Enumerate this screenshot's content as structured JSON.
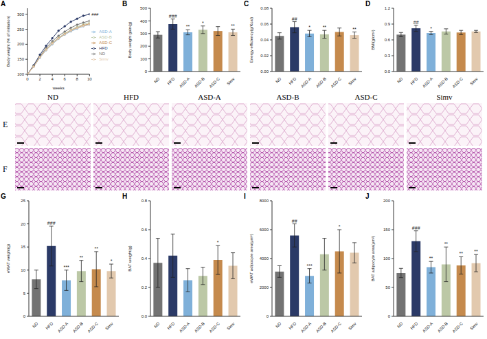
{
  "chart_data": [
    {
      "panel": "A",
      "type": "line",
      "x_label": "weeks",
      "y_label": "Body weight (% of initiation)",
      "x": [
        0,
        1,
        2,
        3,
        4,
        5,
        6,
        7,
        8,
        9,
        10
      ],
      "xlim": [
        0,
        10
      ],
      "xticks": [
        0,
        2,
        4,
        6,
        8,
        10
      ],
      "ylim": [
        100,
        320
      ],
      "yticks": [
        100,
        150,
        200,
        250,
        300
      ],
      "legend": "right",
      "marker": "circle",
      "series": [
        {
          "name": "ND",
          "color": "#737373",
          "values": [
            100,
            128,
            160,
            188,
            210,
            228,
            242,
            255,
            265,
            272,
            278
          ]
        },
        {
          "name": "HFD",
          "color": "#2b3a67",
          "values": [
            100,
            130,
            165,
            195,
            220,
            245,
            260,
            275,
            285,
            295,
            300
          ]
        },
        {
          "name": "ASD-A",
          "color": "#7fb0d9",
          "values": [
            100,
            125,
            155,
            180,
            200,
            218,
            232,
            243,
            252,
            260,
            265
          ]
        },
        {
          "name": "ASD-B",
          "color": "#bcc8a6",
          "values": [
            100,
            127,
            158,
            183,
            205,
            222,
            236,
            248,
            258,
            266,
            272
          ]
        },
        {
          "name": "ASD-C",
          "color": "#c58a4d",
          "values": [
            100,
            126,
            157,
            182,
            203,
            220,
            234,
            246,
            255,
            263,
            268
          ]
        },
        {
          "name": "Simv",
          "color": "#e2c9ae",
          "values": [
            100,
            125,
            156,
            181,
            202,
            219,
            233,
            245,
            254,
            261,
            266
          ]
        }
      ],
      "annotations": [
        {
          "series": "HFD",
          "x": 10,
          "text": "###"
        }
      ]
    },
    {
      "panel": "B",
      "type": "bar",
      "y_label": "Body weight gain(g)",
      "categories": [
        "ND",
        "HFD",
        "ASD-A",
        "ASD-B",
        "ASD-C",
        "Simv"
      ],
      "values": [
        290,
        375,
        310,
        330,
        320,
        310
      ],
      "errors": [
        25,
        40,
        20,
        30,
        35,
        25
      ],
      "annotations": [
        null,
        "###",
        "**",
        "*",
        null,
        "**"
      ],
      "colors": [
        "#737373",
        "#2b3a67",
        "#7fb0d9",
        "#bcc8a6",
        "#c58a4d",
        "#e2c9ae"
      ],
      "ylim": [
        0,
        500
      ],
      "yticks": [
        0,
        100,
        200,
        300,
        400,
        500
      ]
    },
    {
      "panel": "C",
      "type": "bar",
      "y_label": "Energy efficiency(g/Kcal)",
      "categories": [
        "ND",
        "HFD",
        "ASD-A",
        "ASD-B",
        "ASD-C",
        "Simv"
      ],
      "values": [
        0.045,
        0.056,
        0.048,
        0.047,
        0.05,
        0.046
      ],
      "errors": [
        0.004,
        0.007,
        0.004,
        0.005,
        0.005,
        0.004
      ],
      "annotations": [
        null,
        "##",
        "*",
        "**",
        null,
        "**"
      ],
      "colors": [
        "#737373",
        "#2b3a67",
        "#7fb0d9",
        "#bcc8a6",
        "#c58a4d",
        "#e2c9ae"
      ],
      "ylim": [
        0,
        0.08
      ],
      "yticks": [
        {
          "value": 0,
          "label": "0.00"
        },
        {
          "value": 0.02,
          "label": "0.02"
        },
        {
          "value": 0.04,
          "label": "0.04"
        },
        {
          "value": 0.06,
          "label": "0.06"
        },
        {
          "value": 0.08,
          "label": "0.08"
        }
      ]
    },
    {
      "panel": "D",
      "type": "bar",
      "y_label": "BMI(g/cm²)",
      "categories": [
        "ND",
        "HFD",
        "ASD-A",
        "ASD-B",
        "ASD-C",
        "Simv"
      ],
      "values": [
        0.7,
        0.82,
        0.73,
        0.76,
        0.74,
        0.76
      ],
      "errors": [
        0.04,
        0.06,
        0.03,
        0.05,
        0.04,
        0.02
      ],
      "annotations": [
        null,
        "##",
        "*",
        null,
        null,
        null
      ],
      "colors": [
        "#737373",
        "#2b3a67",
        "#7fb0d9",
        "#bcc8a6",
        "#c58a4d",
        "#e2c9ae"
      ],
      "ylim": [
        0,
        1.2
      ],
      "yticks": [
        {
          "value": 0,
          "label": "0.0"
        },
        0.3,
        0.6,
        0.9,
        1.2
      ]
    },
    {
      "panel": "G",
      "type": "bar",
      "y_label": "eWAT weight(g)",
      "categories": [
        "ND",
        "HFD",
        "ASD-A",
        "ASD-B",
        "ASD-C",
        "Simv"
      ],
      "values": [
        8,
        15.2,
        7.8,
        9.8,
        10.2,
        9.8
      ],
      "errors": [
        2,
        4.3,
        2.2,
        2.3,
        3.8,
        1.5
      ],
      "annotations": [
        null,
        "###",
        "***",
        "**",
        "**",
        "*"
      ],
      "colors": [
        "#737373",
        "#2b3a67",
        "#7fb0d9",
        "#bcc8a6",
        "#c58a4d",
        "#e2c9ae"
      ],
      "ylim": [
        0,
        25
      ],
      "yticks": [
        0,
        5,
        10,
        15,
        20,
        25
      ]
    },
    {
      "panel": "H",
      "type": "bar",
      "y_label": "BAT weight(g)",
      "categories": [
        "ND",
        "HFD",
        "ASD-A",
        "ASD-B",
        "ASD-C",
        "Simv"
      ],
      "values": [
        0.37,
        0.42,
        0.25,
        0.28,
        0.39,
        0.35
      ],
      "errors": [
        0.17,
        0.15,
        0.08,
        0.06,
        0.1,
        0.09
      ],
      "annotations": [
        null,
        null,
        null,
        null,
        "*",
        null
      ],
      "colors": [
        "#737373",
        "#2b3a67",
        "#7fb0d9",
        "#bcc8a6",
        "#c58a4d",
        "#e2c9ae"
      ],
      "ylim": [
        0,
        0.8
      ],
      "yticks": [
        {
          "value": 0,
          "label": "0.0"
        },
        0.2,
        0.4,
        0.6,
        0.8
      ]
    },
    {
      "panel": "I",
      "type": "bar",
      "y_label": "eWAT adipocyte area(μm²)",
      "categories": [
        "ND",
        "HFD",
        "ASD-A",
        "ASD-B",
        "ASD-C",
        "Simv"
      ],
      "values": [
        3100,
        5600,
        2800,
        4300,
        4500,
        4400
      ],
      "errors": [
        400,
        800,
        500,
        1100,
        1500,
        700
      ],
      "annotations": [
        null,
        "##",
        "***",
        null,
        "*",
        null
      ],
      "colors": [
        "#737373",
        "#2b3a67",
        "#7fb0d9",
        "#bcc8a6",
        "#c58a4d",
        "#e2c9ae"
      ],
      "ylim": [
        0,
        8000
      ],
      "yticks": [
        0,
        2000,
        4000,
        6000,
        8000
      ]
    },
    {
      "panel": "J",
      "type": "bar",
      "y_label": "BAT adipocyte area(μm²)",
      "categories": [
        "ND",
        "HFD",
        "ASD-A",
        "ASD-B",
        "ASD-C",
        "Simv"
      ],
      "values": [
        75,
        130,
        85,
        90,
        88,
        92
      ],
      "errors": [
        8,
        18,
        10,
        30,
        15,
        15
      ],
      "annotations": [
        null,
        "###",
        "**",
        "**",
        "**",
        "**"
      ],
      "colors": [
        "#737373",
        "#2b3a67",
        "#7fb0d9",
        "#bcc8a6",
        "#c58a4d",
        "#e2c9ae"
      ],
      "ylim": [
        0,
        200
      ],
      "yticks": [
        0,
        50,
        100,
        150,
        200
      ]
    }
  ],
  "images": {
    "panels": [
      "E",
      "F"
    ],
    "columns": [
      "ND",
      "HFD",
      "ASD-A",
      "ASD-B",
      "ASD-C",
      "Simv"
    ]
  }
}
